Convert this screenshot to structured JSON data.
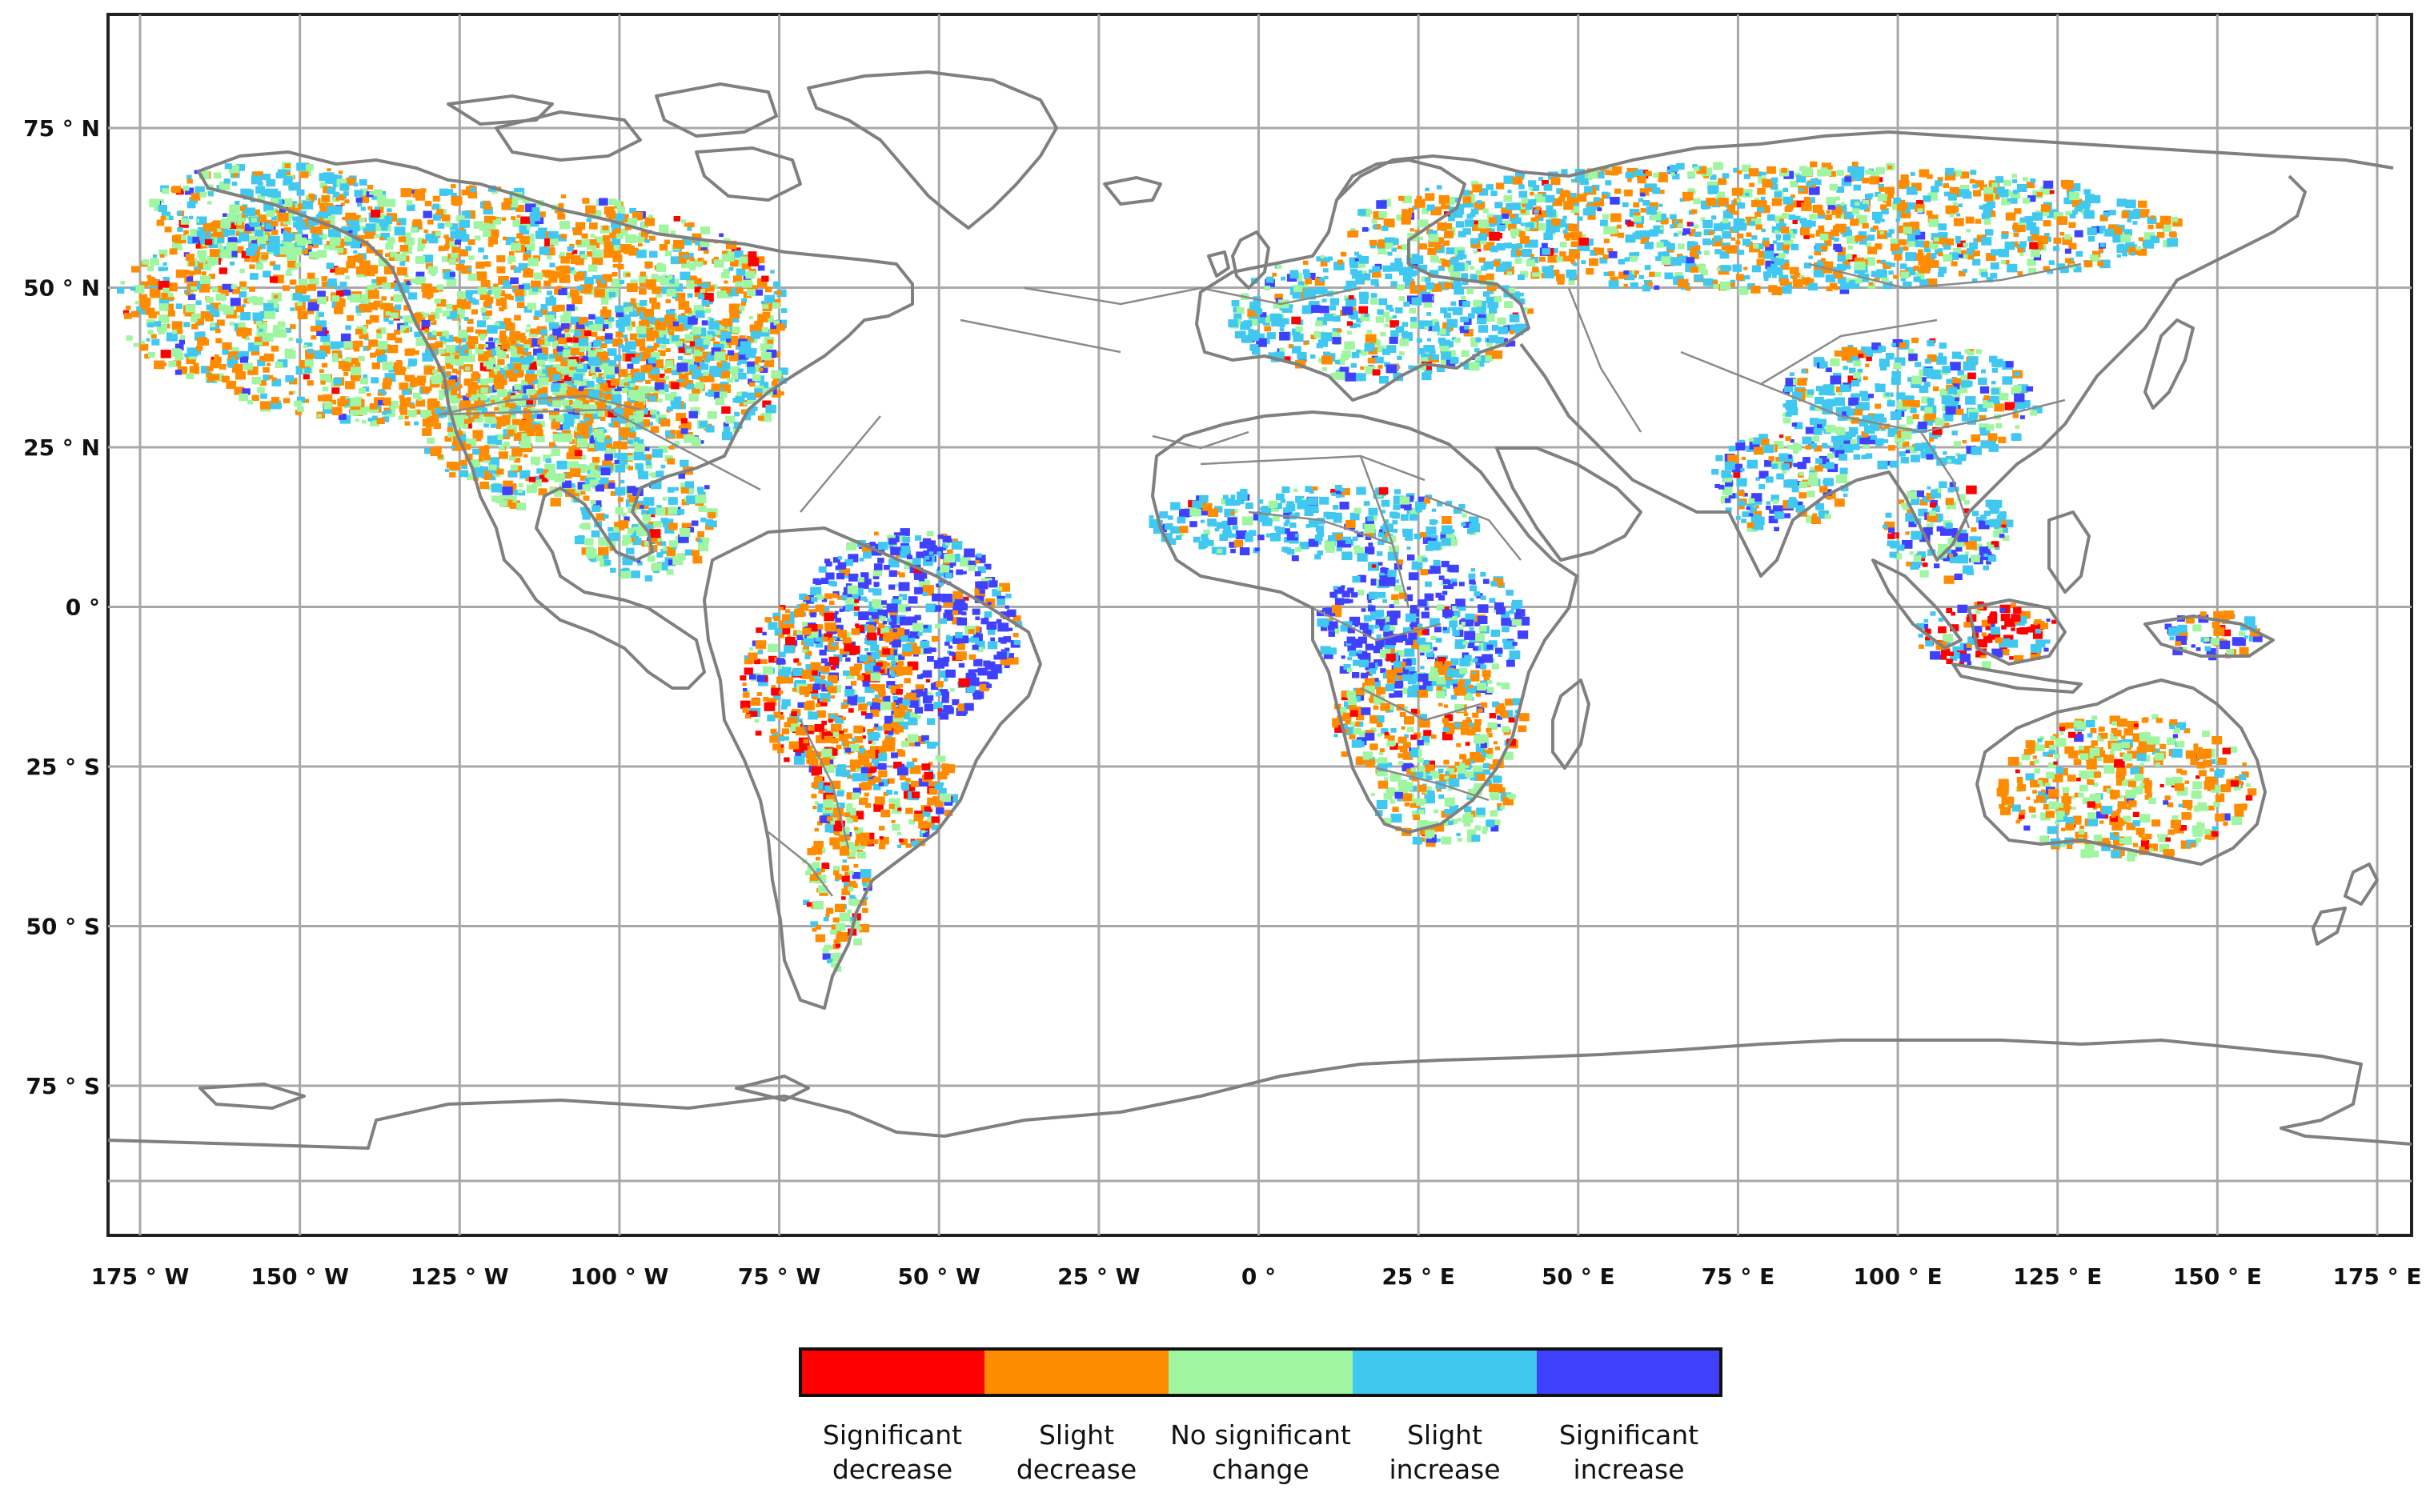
{
  "map": {
    "projection": "equirectangular",
    "lon_range": [
      -180,
      180
    ],
    "lat_range": [
      -90,
      90
    ],
    "grid": true,
    "lon_ticks": [
      {
        "value": -175,
        "label": "175 ° W"
      },
      {
        "value": -150,
        "label": "150 ° W"
      },
      {
        "value": -125,
        "label": "125 ° W"
      },
      {
        "value": -100,
        "label": "100 ° W"
      },
      {
        "value": -75,
        "label": "75 ° W"
      },
      {
        "value": -50,
        "label": "50 ° W"
      },
      {
        "value": -25,
        "label": "25 ° W"
      },
      {
        "value": 0,
        "label": "0 °"
      },
      {
        "value": 25,
        "label": "25 ° E"
      },
      {
        "value": 50,
        "label": "50 ° E"
      },
      {
        "value": 75,
        "label": "75 ° E"
      },
      {
        "value": 100,
        "label": "100 ° E"
      },
      {
        "value": 125,
        "label": "125 ° E"
      },
      {
        "value": 150,
        "label": "150 ° E"
      },
      {
        "value": 175,
        "label": "175 ° E"
      }
    ],
    "lat_ticks": [
      {
        "value": 75,
        "label": "75 ° N"
      },
      {
        "value": 50,
        "label": "50 ° N"
      },
      {
        "value": 25,
        "label": "25 ° N"
      },
      {
        "value": 0,
        "label": "0 °"
      },
      {
        "value": -25,
        "label": "25 ° S"
      },
      {
        "value": -50,
        "label": "50 ° S"
      },
      {
        "value": -75,
        "label": "75 ° S"
      }
    ],
    "land_outline_color": "#808080",
    "grid_color": "#a8a8a8"
  },
  "legend": {
    "placement": "bottom-center",
    "categories": [
      {
        "line1": "Significant",
        "line2": "decrease",
        "color": "#ff0000"
      },
      {
        "line1": "Slight",
        "line2": "decrease",
        "color": "#ff8c00"
      },
      {
        "line1": "No significant",
        "line2": "change",
        "color": "#a0f5a0"
      },
      {
        "line1": "Slight",
        "line2": "increase",
        "color": "#40c8f0"
      },
      {
        "line1": "Significant",
        "line2": "increase",
        "color": "#4040ff"
      }
    ]
  }
}
